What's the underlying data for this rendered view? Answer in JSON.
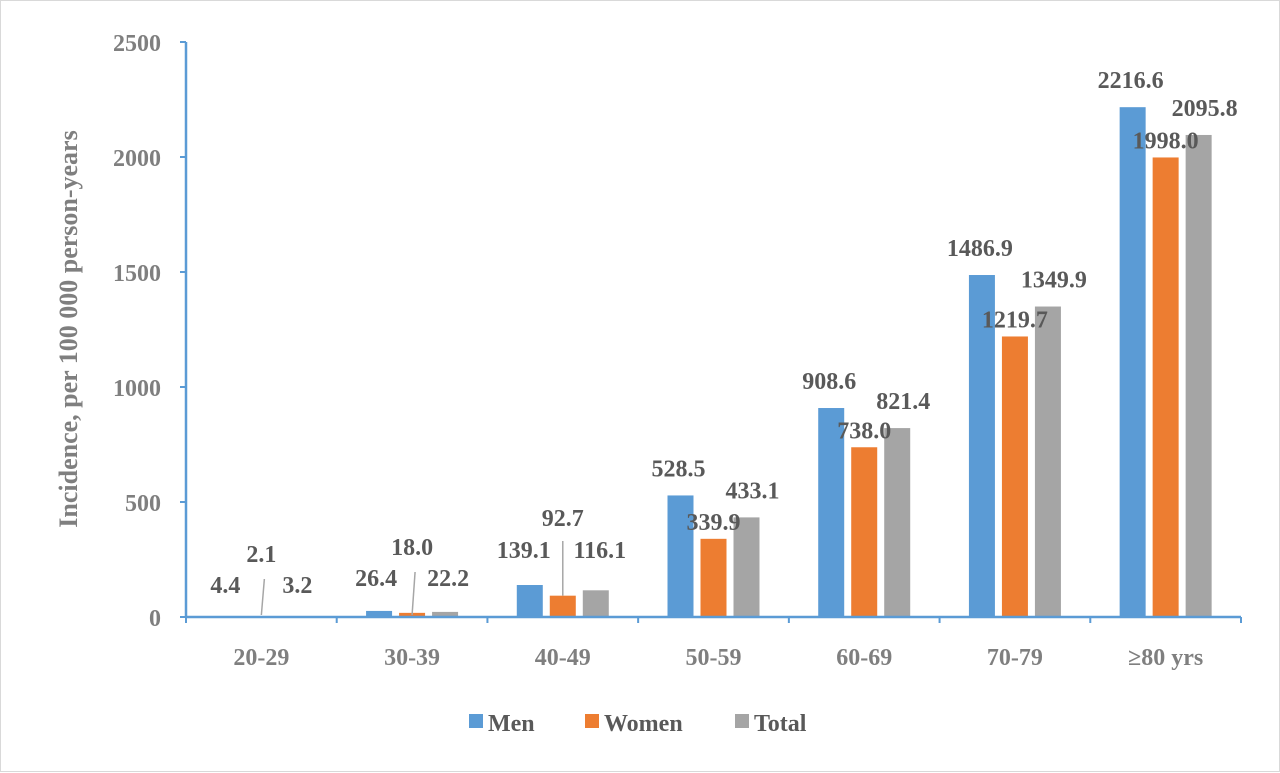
{
  "chart_data": {
    "type": "bar",
    "categories": [
      "20-29",
      "30-39",
      "40-49",
      "50-59",
      "60-69",
      "70-79",
      "≥80 yrs"
    ],
    "series": [
      {
        "name": "Men",
        "color": "#5b9bd5",
        "values": [
          4.4,
          26.4,
          139.1,
          528.5,
          908.6,
          1486.9,
          2216.6
        ],
        "labels": [
          "4.4",
          "26.4",
          "139.1",
          "528.5",
          "908.6",
          "1486.9",
          "2216.6"
        ]
      },
      {
        "name": "Women",
        "color": "#ed7d31",
        "values": [
          2.1,
          18.0,
          92.7,
          339.9,
          738.0,
          1219.7,
          1998.0
        ],
        "labels": [
          "2.1",
          "18.0",
          "92.7",
          "339.9",
          "738.0",
          "1219.7",
          "1998.0"
        ]
      },
      {
        "name": "Total",
        "color": "#a5a5a5",
        "values": [
          3.2,
          22.2,
          116.1,
          433.1,
          821.4,
          1349.9,
          2095.8
        ],
        "labels": [
          "3.2",
          "22.2",
          "116.1",
          "433.1",
          "821.4",
          "1349.9",
          "2095.8"
        ]
      }
    ],
    "ylabel": "Incidence, per 100 000 person-years",
    "xlabel": "",
    "ylim": [
      0,
      2500
    ],
    "yticks": [
      "0",
      "500",
      "1000",
      "1500",
      "2000",
      "2500"
    ],
    "legend_position": "bottom",
    "grid": false,
    "axis_color": "#5b9bd5"
  }
}
